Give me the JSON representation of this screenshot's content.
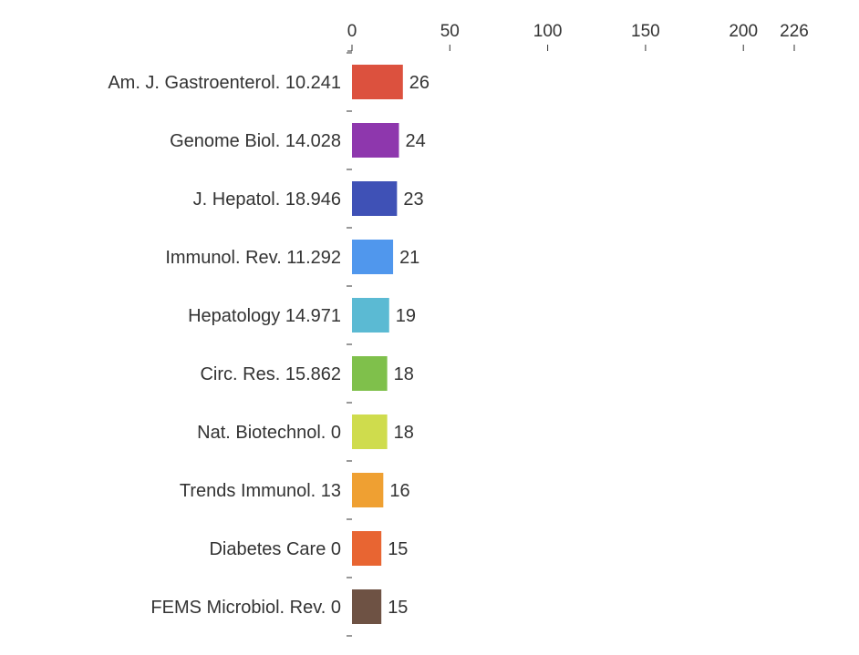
{
  "chart_data": {
    "type": "bar",
    "orientation": "horizontal",
    "x_axis_position": "top",
    "xlim": [
      0,
      226
    ],
    "x_ticks": [
      0,
      50,
      100,
      150,
      200,
      226
    ],
    "x_tick_labels": [
      "0",
      "50",
      "100",
      "150",
      "200",
      "226"
    ],
    "categories": [
      "Am. J. Gastroenterol. 10.241",
      "Genome Biol. 14.028",
      "J. Hepatol. 18.946",
      "Immunol. Rev. 11.292",
      "Hepatology 14.971",
      "Circ. Res. 15.862",
      "Nat. Biotechnol. 0",
      "Trends Immunol. 13",
      "Diabetes Care 0",
      "FEMS Microbiol. Rev. 0"
    ],
    "values": [
      26,
      24,
      23,
      21,
      19,
      18,
      18,
      16,
      15,
      15
    ],
    "value_labels": [
      "26",
      "24",
      "23",
      "21",
      "19",
      "18",
      "18",
      "16",
      "15",
      "15"
    ],
    "colors": [
      "#dc513e",
      "#8e37ad",
      "#3f51b6",
      "#5097ed",
      "#5bbad3",
      "#7fc04b",
      "#cfdc4d",
      "#efa032",
      "#e86532",
      "#6e5244"
    ],
    "grid": false,
    "legend": "none"
  }
}
